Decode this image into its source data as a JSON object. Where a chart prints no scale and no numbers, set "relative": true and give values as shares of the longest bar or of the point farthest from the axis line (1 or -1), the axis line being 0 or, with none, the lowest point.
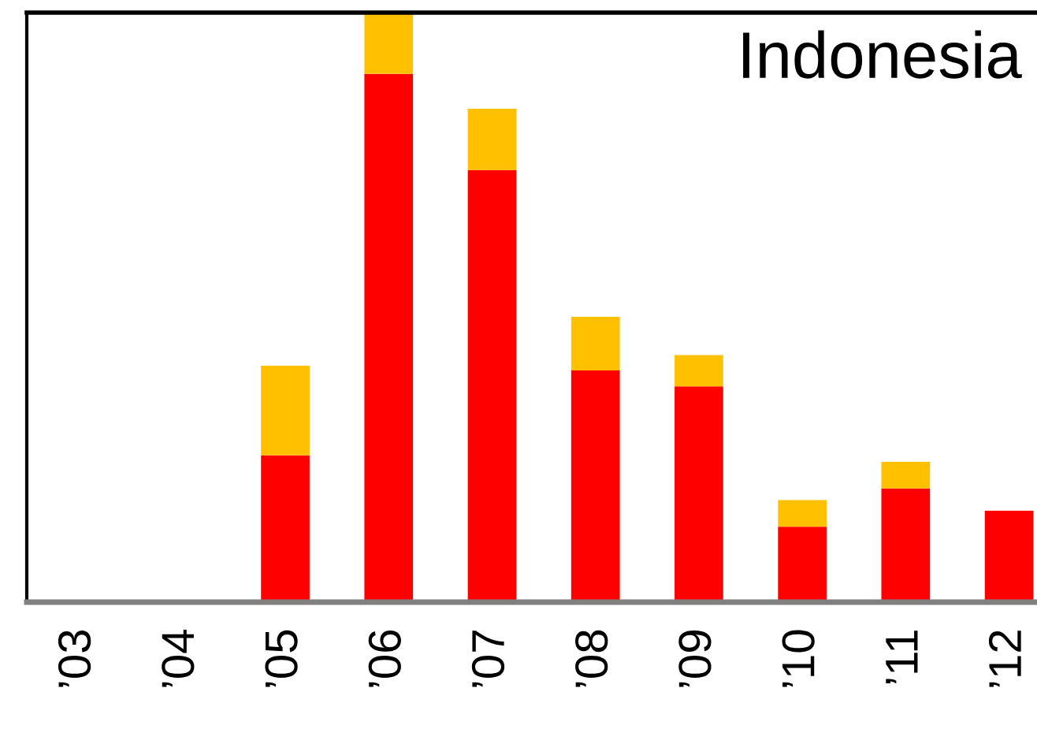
{
  "chart_data": {
    "type": "bar",
    "title": "Indonesia",
    "stacked": true,
    "relative": true,
    "legend": false,
    "grid": false,
    "categories": [
      "’03",
      "’04",
      "’05",
      "’06",
      "’07",
      "’08",
      "’09",
      "’10",
      "’11",
      "’12"
    ],
    "series": [
      {
        "color": "#ff0000",
        "values": [
          0,
          0,
          0.249,
          0.896,
          0.733,
          0.393,
          0.366,
          0.128,
          0.193,
          0.155
        ]
      },
      {
        "color": "#ffc000",
        "values": [
          0,
          0,
          0.152,
          0.104,
          0.104,
          0.091,
          0.053,
          0.045,
          0.045,
          0
        ]
      }
    ]
  }
}
